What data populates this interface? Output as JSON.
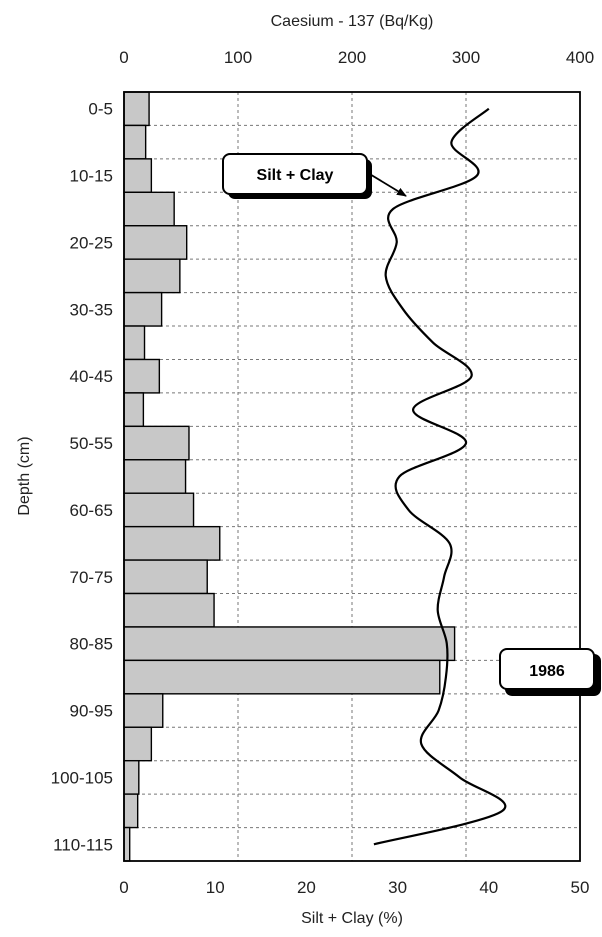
{
  "chart_data": {
    "type": "bar",
    "orientation": "horizontal",
    "top_axis": {
      "title": "Caesium - 137 (Bq/Kg)",
      "ticks": [
        "0",
        "100",
        "200",
        "300",
        "400"
      ],
      "range": [
        0,
        400
      ]
    },
    "bottom_axis": {
      "title": "Silt + Clay (%)",
      "ticks": [
        "0",
        "10",
        "20",
        "30",
        "40",
        "50"
      ],
      "range": [
        0,
        50
      ]
    },
    "ylabel": "Depth (cm)",
    "depth_labels": [
      "0-5",
      "10-15",
      "20-25",
      "30-35",
      "40-45",
      "50-55",
      "60-65",
      "70-75",
      "80-85",
      "90-95",
      "100-105",
      "110-115"
    ],
    "depth_ranges": [
      "0-5",
      "5-10",
      "10-15",
      "15-20",
      "20-25",
      "25-30",
      "30-35",
      "35-40",
      "40-45",
      "45-50",
      "50-55",
      "55-60",
      "60-65",
      "65-70",
      "70-75",
      "75-80",
      "80-85",
      "85-90",
      "90-95",
      "95-100",
      "100-105",
      "105-110",
      "110-115"
    ],
    "caesium_values": [
      22,
      19,
      24,
      44,
      55,
      49,
      33,
      18,
      31,
      17,
      57,
      54,
      61,
      84,
      73,
      79,
      290,
      277,
      34,
      24,
      13,
      12,
      5
    ],
    "silt_clay_curve": {
      "name": "Silt + Clay",
      "values": [
        40.0,
        35.9,
        38.7,
        29.5,
        29.9,
        28.7,
        30.6,
        33.9,
        38.1,
        31.7,
        37.5,
        30.2,
        31.2,
        35.7,
        35.1,
        34.4,
        35.4,
        35.3,
        34.5,
        32.6,
        36.8,
        41.5,
        27.4
      ]
    },
    "annotations": [
      {
        "text": "Silt + Clay"
      },
      {
        "text": "1986"
      }
    ],
    "grid": true
  }
}
